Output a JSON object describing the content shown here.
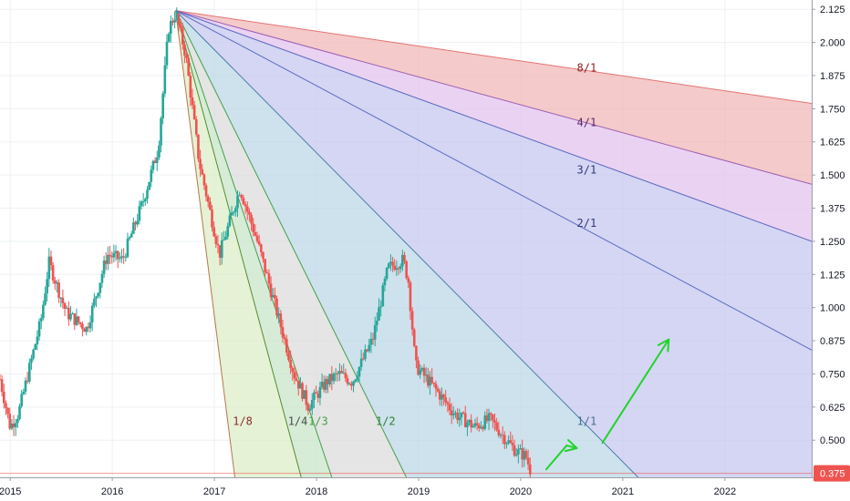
{
  "chart_data": {
    "type": "candlestick",
    "x_axis": {
      "tick_labels": [
        "2015",
        "2016",
        "2017",
        "2018",
        "2019",
        "2020",
        "2021",
        "2022"
      ],
      "tick_values": [
        2015,
        2016,
        2017,
        2018,
        2019,
        2020,
        2021,
        2022
      ],
      "range": [
        2014.9,
        2022.85
      ]
    },
    "y_axis": {
      "tick_labels": [
        "2.125",
        "2.000",
        "1.875",
        "1.750",
        "1.625",
        "1.500",
        "1.375",
        "1.250",
        "1.125",
        "1.000",
        "0.875",
        "0.750",
        "0.625",
        "0.500"
      ],
      "tick_values": [
        2.125,
        2.0,
        1.875,
        1.75,
        1.625,
        1.5,
        1.375,
        1.25,
        1.125,
        1.0,
        0.875,
        0.75,
        0.625,
        0.5
      ],
      "range": [
        0.36,
        2.16
      ],
      "position": "right"
    },
    "last_price": {
      "label": "0.375",
      "value": 0.375,
      "color": "#ef5350"
    },
    "colors": {
      "up": "#26a69a",
      "down": "#ef5350"
    },
    "price_path": [
      [
        2014.9,
        0.73
      ],
      [
        2015.0,
        0.55
      ],
      [
        2015.08,
        0.6
      ],
      [
        2015.3,
        0.95
      ],
      [
        2015.38,
        1.17
      ],
      [
        2015.55,
        0.98
      ],
      [
        2015.75,
        0.92
      ],
      [
        2015.95,
        1.2
      ],
      [
        2016.1,
        1.18
      ],
      [
        2016.3,
        1.4
      ],
      [
        2016.45,
        1.6
      ],
      [
        2016.55,
        2.05
      ],
      [
        2016.62,
        2.11
      ],
      [
        2016.72,
        1.95
      ],
      [
        2016.85,
        1.55
      ],
      [
        2017.05,
        1.2
      ],
      [
        2017.25,
        1.45
      ],
      [
        2017.42,
        1.25
      ],
      [
        2017.6,
        1.0
      ],
      [
        2017.78,
        0.75
      ],
      [
        2017.92,
        0.63
      ],
      [
        2018.1,
        0.72
      ],
      [
        2018.22,
        0.75
      ],
      [
        2018.35,
        0.72
      ],
      [
        2018.55,
        0.88
      ],
      [
        2018.7,
        1.15
      ],
      [
        2018.85,
        1.18
      ],
      [
        2018.9,
        1.1
      ],
      [
        2018.97,
        0.78
      ],
      [
        2019.15,
        0.7
      ],
      [
        2019.35,
        0.6
      ],
      [
        2019.55,
        0.55
      ],
      [
        2019.7,
        0.58
      ],
      [
        2019.82,
        0.52
      ],
      [
        2019.95,
        0.46
      ],
      [
        2020.05,
        0.44
      ],
      [
        2020.1,
        0.38
      ]
    ],
    "gann_fan": {
      "origin": [
        2016.62,
        2.12
      ],
      "lines": [
        {
          "label": "8/1",
          "x2": 2022.85,
          "y2": 1.77,
          "color": "#e57373",
          "fill": "#f0b8b8"
        },
        {
          "label": "4/1",
          "x2": 2022.85,
          "y2": 1.465,
          "color": "#9c5fb5",
          "fill": "#e3c4ee"
        },
        {
          "label": "3/1",
          "x2": 2022.85,
          "y2": 1.25,
          "color": "#5c6bc0",
          "fill": "#c5c8ef"
        },
        {
          "label": "2/1",
          "x2": 2022.85,
          "y2": 0.84,
          "color": "#5c6bc0",
          "fill": "#c5c8ef"
        },
        {
          "label": "1/1",
          "x2": 2021.15,
          "y2": 0.36,
          "color": "#4a7ea8",
          "fill": "#bcd8e6"
        },
        {
          "label": "1/2",
          "x2": 2018.88,
          "y2": 0.36,
          "color": "#43a047",
          "fill": "#dcdcdc"
        },
        {
          "label": "1/3",
          "x2": 2018.15,
          "y2": 0.36,
          "color": "#43a047",
          "fill": "#c8e6c9"
        },
        {
          "label": "1/4",
          "x2": 2017.85,
          "y2": 0.36,
          "color": "#558b2f",
          "fill": "#dcedc8"
        },
        {
          "label": "1/8",
          "x2": 2017.2,
          "y2": 0.36,
          "color": "#b7784a",
          "fill": "#eed9c4"
        }
      ],
      "labels": [
        {
          "text": "8/1",
          "x": 2020.55,
          "y": 1.89,
          "color": "#8b1f1f"
        },
        {
          "text": "4/1",
          "x": 2020.55,
          "y": 1.685,
          "color": "#5a2b68"
        },
        {
          "text": "3/1",
          "x": 2020.55,
          "y": 1.505,
          "color": "#2f3a74"
        },
        {
          "text": "2/1",
          "x": 2020.55,
          "y": 1.305,
          "color": "#2f3a74"
        },
        {
          "text": "1/1",
          "x": 2020.55,
          "y": 0.557,
          "color": "#4a6f8f"
        },
        {
          "text": "1/2",
          "x": 2018.58,
          "y": 0.557,
          "color": "#2e7d32"
        },
        {
          "text": "1/3",
          "x": 2017.92,
          "y": 0.557,
          "color": "#43a047"
        },
        {
          "text": "1/4",
          "x": 2017.72,
          "y": 0.557,
          "color": "#4b4b4b"
        },
        {
          "text": "1/8",
          "x": 2017.18,
          "y": 0.557,
          "color": "#8b2c2c"
        }
      ]
    },
    "annotations": [
      {
        "type": "arrow",
        "color": "#22d32a",
        "points": [
          [
            2020.25,
            0.39
          ],
          [
            2020.45,
            0.48
          ],
          [
            2020.55,
            0.47
          ]
        ]
      },
      {
        "type": "arrow",
        "color": "#22d32a",
        "points": [
          [
            2020.8,
            0.49
          ],
          [
            2021.45,
            0.88
          ]
        ]
      }
    ],
    "grid": true,
    "legend": "none"
  }
}
